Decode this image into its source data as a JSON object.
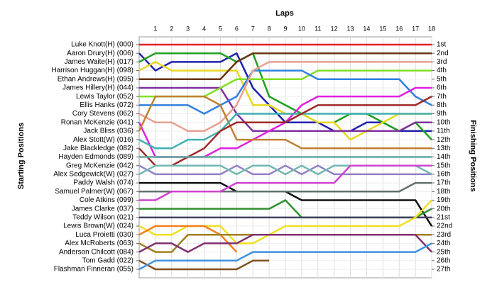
{
  "chart_data": {
    "type": "line",
    "title": "Laps",
    "y_label": "Starting Positions",
    "y2_label": "Finishing Positions",
    "x": [
      0,
      1,
      2,
      3,
      4,
      5,
      6,
      7,
      8,
      9,
      10,
      11,
      12,
      13,
      14,
      15,
      16,
      17,
      18
    ],
    "xlim": [
      0,
      18
    ],
    "xticks": [
      1,
      2,
      3,
      4,
      5,
      6,
      7,
      8,
      9,
      10,
      11,
      12,
      13,
      14,
      15,
      16,
      17,
      18
    ],
    "ylim": [
      1,
      27
    ],
    "y_inverted": true,
    "y2lim": [
      1,
      27
    ],
    "y2ticks": [
      {
        "value": 1,
        "label": "1st"
      },
      {
        "value": 2,
        "label": "2nd"
      },
      {
        "value": 3,
        "label": "3rd"
      },
      {
        "value": 4,
        "label": "4th"
      },
      {
        "value": 5,
        "label": "5th"
      },
      {
        "value": 6,
        "label": "6th"
      },
      {
        "value": 7,
        "label": "7th"
      },
      {
        "value": 8,
        "label": "8th"
      },
      {
        "value": 9,
        "label": "9th"
      },
      {
        "value": 10,
        "label": "10th"
      },
      {
        "value": 11,
        "label": "11th"
      },
      {
        "value": 12,
        "label": "12th"
      },
      {
        "value": 13,
        "label": "13th"
      },
      {
        "value": 14,
        "label": "14th"
      },
      {
        "value": 15,
        "label": "15th"
      },
      {
        "value": 16,
        "label": "16th"
      },
      {
        "value": 17,
        "label": "17th"
      },
      {
        "value": 18,
        "label": "18th"
      },
      {
        "value": 19,
        "label": "19th"
      },
      {
        "value": 20,
        "label": "20th"
      },
      {
        "value": 21,
        "label": "21st"
      },
      {
        "value": 22,
        "label": "22nd"
      },
      {
        "value": 23,
        "label": "23rd"
      },
      {
        "value": 24,
        "label": "24th"
      },
      {
        "value": 25,
        "label": "25th"
      },
      {
        "value": 26,
        "label": "26th"
      },
      {
        "value": 27,
        "label": "27th"
      }
    ],
    "grid": true,
    "series": [
      {
        "name": "Luke Knott(H) (000)",
        "color": "#e02020",
        "values": [
          1,
          1,
          1,
          1,
          1,
          1,
          1,
          1,
          1,
          1,
          1,
          1,
          1,
          1,
          1,
          1,
          1,
          1,
          1
        ]
      },
      {
        "name": "Aaron Drury(H) (006)",
        "color": "#2020b0",
        "values": [
          2,
          4,
          3,
          3,
          3,
          3,
          2,
          6,
          8,
          10,
          10,
          10,
          11,
          11,
          10,
          10,
          11,
          11,
          11
        ]
      },
      {
        "name": "James Waite(H) (017)",
        "color": "#20a020",
        "values": [
          3,
          2,
          2,
          2,
          2,
          2,
          3,
          2,
          7,
          8,
          9,
          10,
          10,
          9,
          9,
          10,
          11,
          10,
          12
        ]
      },
      {
        "name": "Harrison Huggan(H) (098)",
        "color": "#e8d820",
        "values": [
          4,
          3,
          4,
          4,
          4,
          4,
          4,
          8,
          8,
          9,
          9,
          10,
          10,
          12,
          11,
          10,
          9,
          9,
          9
        ]
      },
      {
        "name": "Ethan Andrews(H) (095)",
        "color": "#6a3510",
        "values": [
          5,
          5,
          5,
          5,
          5,
          5,
          3,
          2,
          2,
          2,
          2,
          2,
          2,
          2,
          2,
          2,
          2,
          2,
          2
        ]
      },
      {
        "name": "James Hillery(H) (044)",
        "color": "#8030a0",
        "values": [
          6,
          6,
          6,
          6,
          6,
          6,
          9,
          11,
          11,
          11,
          11,
          11,
          11,
          11,
          11,
          11,
          11,
          10,
          10
        ]
      },
      {
        "name": "Lewis Taylor (052)",
        "color": "#80e020",
        "values": [
          7,
          7,
          7,
          7,
          7,
          6,
          5,
          5,
          5,
          5,
          5,
          4,
          4,
          4,
          4,
          4,
          4,
          4,
          4
        ]
      },
      {
        "name": "Ellis Hanks (072)",
        "color": "#3080e0",
        "values": [
          8,
          8,
          8,
          8,
          9,
          8,
          7,
          4,
          4,
          4,
          4,
          5,
          5,
          5,
          5,
          5,
          5,
          7,
          8
        ]
      },
      {
        "name": "Cory Stevens (062)",
        "color": "#e8a090",
        "values": [
          9,
          10,
          10,
          11,
          11,
          10,
          8,
          4,
          3,
          3,
          3,
          3,
          3,
          3,
          3,
          3,
          3,
          3,
          3
        ]
      },
      {
        "name": "Ronan McKenzie (041)",
        "color": "#e020e0",
        "values": [
          10,
          14,
          14,
          14,
          14,
          13,
          13,
          12,
          11,
          10,
          8,
          7,
          7,
          7,
          7,
          7,
          7,
          6,
          6
        ]
      },
      {
        "name": "Jack Bliss (036)",
        "color": "#c08030",
        "values": [
          11,
          7,
          7,
          7,
          7,
          8,
          12,
          12,
          12,
          12,
          13,
          13,
          13,
          13,
          13,
          13,
          13,
          13,
          13
        ]
      },
      {
        "name": "Alex Stott(W) (016)",
        "color": "#40b0b0",
        "values": [
          12,
          13,
          13,
          12,
          12,
          11,
          9,
          9,
          9,
          9,
          9,
          9,
          9,
          9,
          9,
          9,
          9,
          9,
          9
        ]
      },
      {
        "name": "Jake Blackledge (082)",
        "color": "#a02828",
        "values": [
          13,
          15,
          15,
          14,
          13,
          11,
          10,
          10,
          10,
          10,
          9,
          8,
          8,
          8,
          8,
          8,
          8,
          8,
          7
        ]
      },
      {
        "name": "Hayden Edmonds (089)",
        "color": "#60a8a0",
        "values": [
          14,
          14,
          14,
          14,
          14,
          14,
          14,
          14,
          14,
          14,
          14,
          14,
          14,
          14,
          14,
          14,
          14,
          14,
          14
        ]
      },
      {
        "name": "Greg McKenzie (042)",
        "color": "#9080c8",
        "values": [
          15,
          16,
          16,
          16,
          16,
          16,
          15,
          16,
          16,
          15,
          16,
          15,
          16,
          16,
          16,
          16,
          16,
          16,
          16
        ]
      },
      {
        "name": "Alex Sedgewick(W) (027)",
        "color": "#70b8b0",
        "values": [
          16,
          15,
          15,
          15,
          15,
          15,
          16,
          15,
          15,
          16,
          15,
          16,
          15,
          15,
          15,
          15,
          15,
          15,
          16
        ]
      },
      {
        "name": "Paddy Walsh (074)",
        "color": "#101010",
        "values": [
          17,
          17,
          17,
          17,
          17,
          17,
          18,
          18,
          18,
          18,
          19,
          19,
          19,
          19,
          19,
          19,
          19,
          19,
          22
        ]
      },
      {
        "name": "Samuel Palmer(W) (067)",
        "color": "#607068",
        "values": [
          18,
          18,
          18,
          18,
          18,
          18,
          18,
          18,
          18,
          18,
          18,
          18,
          18,
          18,
          18,
          18,
          18,
          17,
          17
        ]
      },
      {
        "name": "Cole Atkins (099)",
        "color": "#d040d0",
        "values": [
          19,
          19,
          18,
          18,
          18,
          18,
          17,
          17,
          17,
          17,
          17,
          17,
          17,
          15,
          15,
          15,
          15,
          15,
          15
        ]
      },
      {
        "name": "James Clarke (037)",
        "color": "#309030",
        "values": [
          20,
          20,
          20,
          20,
          20,
          20,
          20,
          20,
          20,
          19,
          21,
          21,
          21,
          21,
          21,
          21,
          21,
          21,
          20
        ]
      },
      {
        "name": "Teddy Wilson (021)",
        "color": "#404060",
        "values": [
          21,
          21,
          21,
          21,
          21,
          21,
          21,
          21,
          21,
          21,
          21,
          21,
          21,
          21,
          21,
          21,
          21,
          21,
          21
        ]
      },
      {
        "name": "Lewis Brown(W) (024)",
        "color": "#f0e020",
        "values": [
          22,
          23,
          23,
          22,
          22,
          22,
          24,
          24,
          23,
          22,
          22,
          22,
          22,
          22,
          22,
          22,
          22,
          21,
          19
        ]
      },
      {
        "name": "Luca Proietti (030)",
        "color": "#f08020",
        "values": [
          23,
          22,
          22,
          22,
          22,
          23,
          25,
          null,
          null,
          null,
          null,
          null,
          null,
          null,
          null,
          null,
          null,
          null,
          null
        ]
      },
      {
        "name": "Alex McRoberts (063)",
        "color": "#a08020",
        "values": [
          24,
          25,
          25,
          23,
          23,
          23,
          23,
          23,
          23,
          23,
          23,
          23,
          23,
          23,
          23,
          23,
          23,
          23,
          23
        ]
      },
      {
        "name": "Anderson Chilcott (084)",
        "color": "#803070",
        "values": [
          25,
          24,
          24,
          25,
          24,
          24,
          24,
          23,
          23,
          23,
          23,
          23,
          23,
          23,
          23,
          23,
          23,
          23,
          25
        ]
      },
      {
        "name": "Tom Gadd (022)",
        "color": "#805020",
        "values": [
          26,
          27,
          27,
          27,
          27,
          27,
          27,
          26,
          26,
          null,
          null,
          null,
          null,
          null,
          null,
          null,
          null,
          null,
          null
        ]
      },
      {
        "name": "Flashman Finneran (055)",
        "color": "#4090e0",
        "values": [
          27,
          26,
          26,
          26,
          26,
          26,
          26,
          25,
          25,
          25,
          25,
          25,
          25,
          25,
          25,
          25,
          25,
          25,
          24
        ]
      }
    ]
  }
}
